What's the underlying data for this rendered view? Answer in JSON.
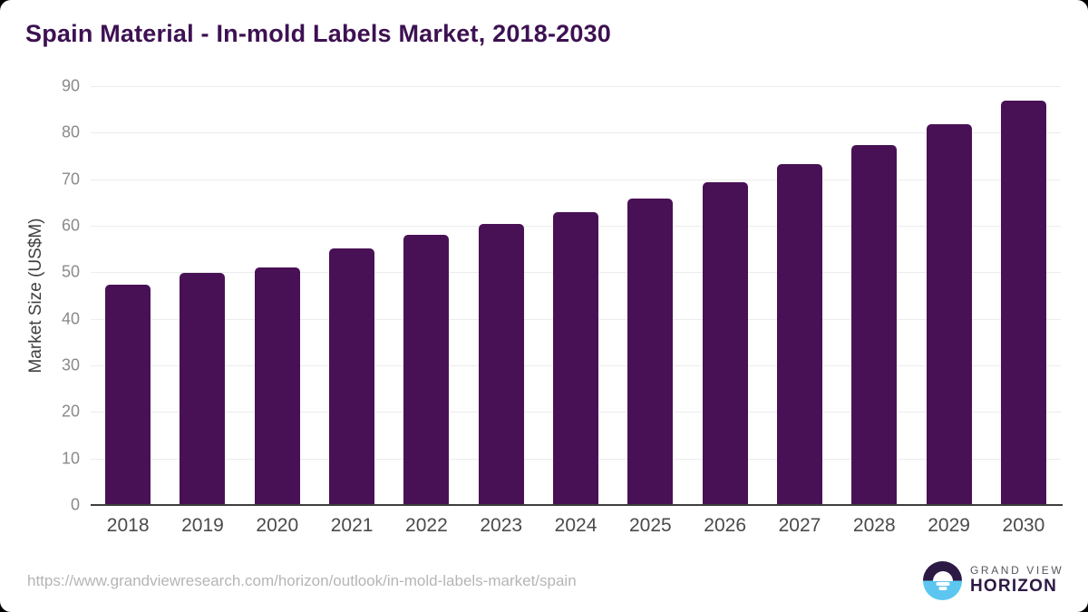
{
  "page": {
    "title": "Spain Material - In-mold Labels Market, 2018-2030"
  },
  "chart_data": {
    "type": "bar",
    "title": "Spain Material - In-mold Labels Market, 2018-2030",
    "xlabel": "",
    "ylabel": "Market Size (US$M)",
    "categories": [
      "2018",
      "2019",
      "2020",
      "2021",
      "2022",
      "2023",
      "2024",
      "2025",
      "2026",
      "2027",
      "2028",
      "2029",
      "2030"
    ],
    "values": [
      47.4,
      49.8,
      51.0,
      55.2,
      58.1,
      60.4,
      63.0,
      65.9,
      69.4,
      73.2,
      77.3,
      81.9,
      86.9
    ],
    "ylim": [
      0,
      90
    ],
    "yticks": [
      0,
      10,
      20,
      30,
      40,
      50,
      60,
      70,
      80,
      90
    ],
    "grid": "horizontal",
    "legend": "none",
    "bar_color": "#491155"
  },
  "footer": {
    "source_url": "https://www.grandviewresearch.com/horizon/outlook/in-mold-labels-market/spain",
    "logo": {
      "line1": "GRAND VIEW",
      "line2": "HORIZON",
      "icon": "horizon-sun-icon"
    }
  },
  "colors": {
    "title_text": "#3d1152",
    "bar": "#491155",
    "gridline": "#ececee",
    "axis_line": "#3d3d3d",
    "y_tick_text": "#8a8a8a",
    "x_tick_text": "#4a4a4a",
    "url_text": "#b5b5b5",
    "logo_blue": "#5cc6f0",
    "logo_dark_purple": "#2c1a44"
  }
}
